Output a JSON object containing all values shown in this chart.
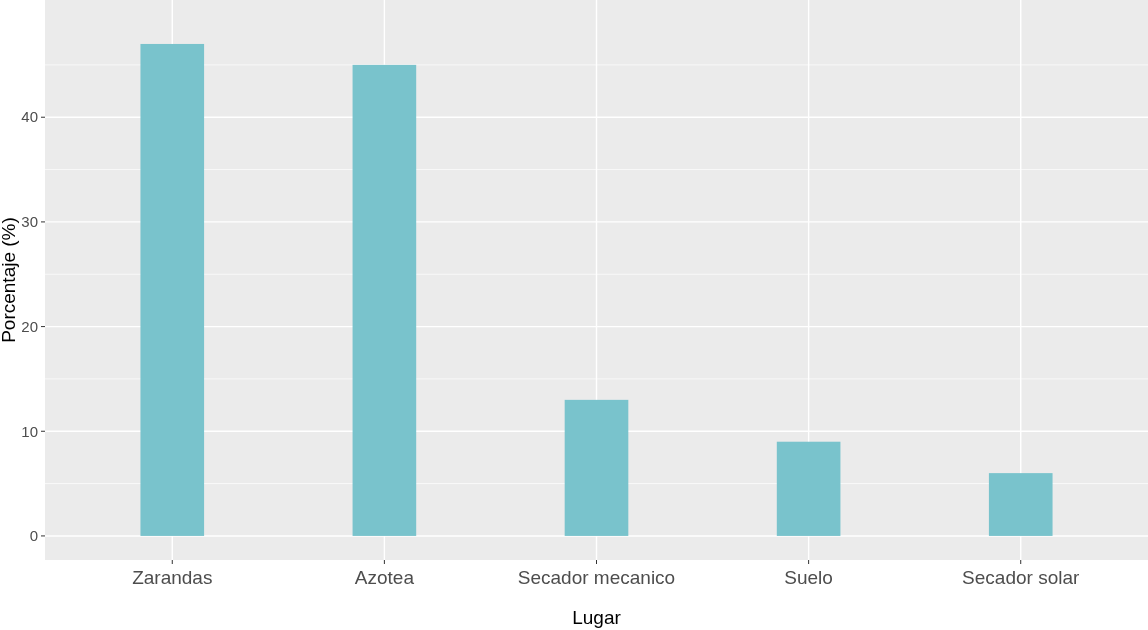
{
  "chart_data": {
    "type": "bar",
    "xlabel": "Lugar",
    "ylabel": "Porcentaje (%)",
    "categories": [
      "Zarandas",
      "Azotea",
      "Secador mecanico",
      "Suelo",
      "Secador solar"
    ],
    "values": [
      47,
      45,
      13,
      9,
      6
    ],
    "color": "#79c3cc",
    "ylim": [
      -2.3,
      51.2
    ],
    "yticks": [
      0,
      10,
      20,
      30,
      40
    ],
    "grid": true
  }
}
